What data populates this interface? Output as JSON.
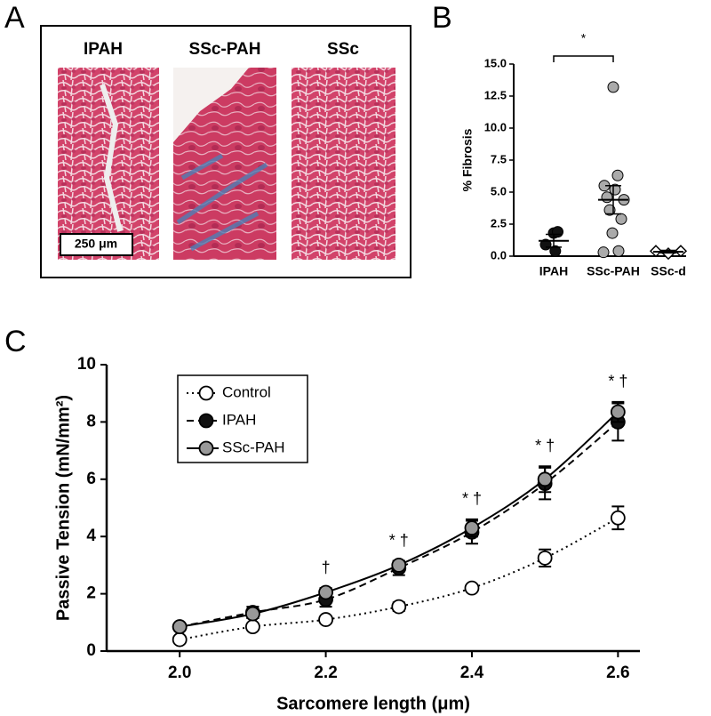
{
  "panel_a": {
    "label": "A",
    "titles": [
      "IPAH",
      "SSc-PAH",
      "SSc"
    ],
    "scale_bar": "250 μm"
  },
  "chart_data": [
    {
      "type": "dot",
      "panel_label": "B",
      "ylabel": "% Fibrosis",
      "categories": [
        "IPAH",
        "SSc-PAH",
        "SSc-d"
      ],
      "points": [
        [
          1.8,
          1.9,
          0.9,
          0.4
        ],
        [
          13.2,
          6.3,
          5.5,
          5.2,
          4.6,
          4.4,
          3.6,
          2.9,
          1.8,
          0.4,
          0.3
        ],
        [
          0.4,
          0.2,
          0.4
        ]
      ],
      "means": [
        1.2,
        4.4,
        0.35
      ],
      "sems": [
        0.5,
        1.1,
        0.1
      ],
      "colors": [
        "#111111",
        "#aaaaaa",
        "#ffffff"
      ],
      "markers": [
        "circle",
        "circle",
        "diamond"
      ],
      "ylim": [
        0,
        15
      ],
      "yticks": [
        {
          "value": 0,
          "label": "0.0"
        },
        {
          "value": 2.5,
          "label": "2.5"
        },
        {
          "value": 5,
          "label": "5.0"
        },
        {
          "value": 7.5,
          "label": "7.5"
        },
        {
          "value": 10,
          "label": "10.0"
        },
        {
          "value": 12.5,
          "label": "12.5"
        },
        {
          "value": 15,
          "label": "15.0"
        }
      ],
      "significance": {
        "label": "*",
        "groups": [
          "IPAH",
          "SSc-PAH"
        ]
      }
    },
    {
      "type": "line",
      "panel_label": "C",
      "xlabel": "Sarcomere length (μm)",
      "ylabel": "Passive Tension (mN/mm²)",
      "x": [
        2.0,
        2.1,
        2.2,
        2.3,
        2.4,
        2.5,
        2.6
      ],
      "series": [
        {
          "name": "Control",
          "color": "#ffffff",
          "dash": "dotted",
          "values": [
            0.4,
            0.85,
            1.1,
            1.55,
            2.2,
            3.25,
            4.65
          ],
          "errors": [
            0.05,
            0.1,
            0.1,
            0.15,
            0.1,
            0.3,
            0.4
          ]
        },
        {
          "name": "IPAH",
          "color": "#111111",
          "dash": "dashed",
          "values": [
            0.85,
            1.35,
            1.8,
            2.9,
            4.15,
            5.85,
            8.0
          ],
          "errors": [
            0.1,
            0.2,
            0.25,
            0.25,
            0.4,
            0.55,
            0.65
          ]
        },
        {
          "name": "SSc-PAH",
          "color": "#999999",
          "dash": "solid",
          "values": [
            0.85,
            1.3,
            2.05,
            3.0,
            4.3,
            6.0,
            8.35
          ],
          "errors": [
            0.1,
            0.15,
            0.15,
            0.15,
            0.3,
            0.45,
            0.35
          ]
        }
      ],
      "annotations": [
        null,
        null,
        "†",
        "* †",
        "* †",
        "* †",
        "* †"
      ],
      "xlim": [
        1.9,
        2.63
      ],
      "ylim": [
        0,
        10
      ],
      "xticks": [
        {
          "value": 2.0,
          "label": "2.0"
        },
        {
          "value": 2.2,
          "label": "2.2"
        },
        {
          "value": 2.4,
          "label": "2.4"
        },
        {
          "value": 2.6,
          "label": "2.6"
        }
      ],
      "yticks": [
        0,
        2,
        4,
        6,
        8,
        10
      ],
      "legend": "upper left"
    }
  ]
}
